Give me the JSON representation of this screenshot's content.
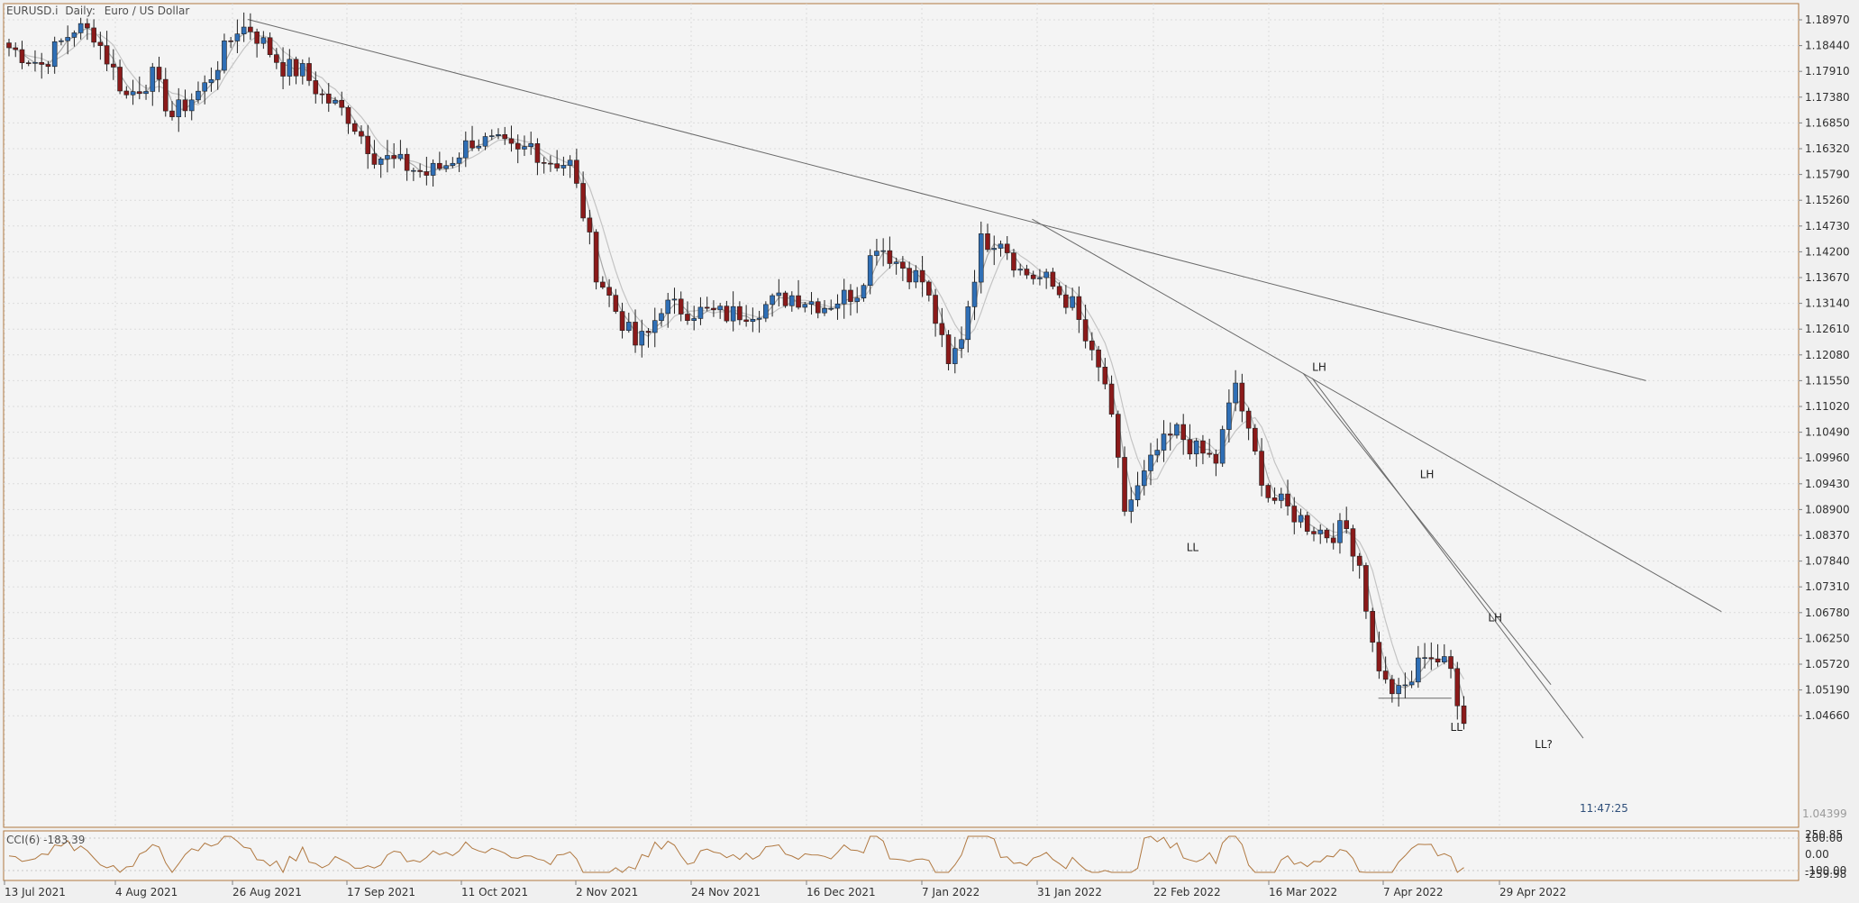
{
  "header": {
    "symbol": "EURUSD.i",
    "timeframe": "Daily:",
    "description": "Euro / US Dollar"
  },
  "indicator": {
    "label": "CCI(6) -183.39",
    "levels": [
      "250.85",
      "100.00",
      "0.00",
      "-100.00",
      "-259.98"
    ]
  },
  "timer": "11:47:25",
  "current_price_label": "1.04399",
  "colors": {
    "bull": "#2f6fb6",
    "bear": "#8b1a1a",
    "frame": "#b07840",
    "ma": "#a8a8a8",
    "trend": "#6a6a6a",
    "cci": "#b07840"
  },
  "chart_data": {
    "type": "candlestick",
    "title": "EURUSD.i, Daily:  Euro / US Dollar",
    "y_ticks": [
      "1.18970",
      "1.18440",
      "1.17910",
      "1.17380",
      "1.16850",
      "1.16320",
      "1.15790",
      "1.15260",
      "1.14730",
      "1.14200",
      "1.13670",
      "1.13140",
      "1.12610",
      "1.12080",
      "1.11550",
      "1.11020",
      "1.10490",
      "1.09960",
      "1.09430",
      "1.08900",
      "1.08370",
      "1.07840",
      "1.07310",
      "1.06780",
      "1.06250",
      "1.05720",
      "1.05190",
      "1.04660"
    ],
    "x_ticks": [
      "13 Jul 2021",
      "4 Aug 2021",
      "26 Aug 2021",
      "17 Sep 2021",
      "11 Oct 2021",
      "2 Nov 2021",
      "24 Nov 2021",
      "16 Dec 2021",
      "7 Jan 2022",
      "31 Jan 2022",
      "22 Feb 2022",
      "16 Mar 2022",
      "7 Apr 2022",
      "29 Apr 2022"
    ],
    "ylim": [
      1.0446,
      1.1907
    ],
    "anchors": [
      {
        "i": 0,
        "p": 1.184
      },
      {
        "i": 5,
        "p": 1.1805
      },
      {
        "i": 10,
        "p": 1.188
      },
      {
        "i": 13,
        "p": 1.187
      },
      {
        "i": 18,
        "p": 1.174
      },
      {
        "i": 22,
        "p": 1.178
      },
      {
        "i": 25,
        "p": 1.17
      },
      {
        "i": 30,
        "p": 1.176
      },
      {
        "i": 35,
        "p": 1.188
      },
      {
        "i": 37,
        "p": 1.188
      },
      {
        "i": 42,
        "p": 1.18
      },
      {
        "i": 45,
        "p": 1.179
      },
      {
        "i": 48,
        "p": 1.174
      },
      {
        "i": 52,
        "p": 1.17
      },
      {
        "i": 56,
        "p": 1.162
      },
      {
        "i": 60,
        "p": 1.16
      },
      {
        "i": 64,
        "p": 1.158
      },
      {
        "i": 67,
        "p": 1.16
      },
      {
        "i": 71,
        "p": 1.165
      },
      {
        "i": 75,
        "p": 1.164
      },
      {
        "i": 78,
        "p": 1.162
      },
      {
        "i": 80,
        "p": 1.164
      },
      {
        "i": 82,
        "p": 1.161
      },
      {
        "i": 86,
        "p": 1.16
      },
      {
        "i": 88,
        "p": 1.15
      },
      {
        "i": 90,
        "p": 1.138
      },
      {
        "i": 93,
        "p": 1.13
      },
      {
        "i": 96,
        "p": 1.123
      },
      {
        "i": 98,
        "p": 1.125
      },
      {
        "i": 100,
        "p": 1.131
      },
      {
        "i": 104,
        "p": 1.13
      },
      {
        "i": 110,
        "p": 1.129
      },
      {
        "i": 114,
        "p": 1.13
      },
      {
        "i": 120,
        "p": 1.133
      },
      {
        "i": 125,
        "p": 1.131
      },
      {
        "i": 130,
        "p": 1.134
      },
      {
        "i": 133,
        "p": 1.144
      },
      {
        "i": 136,
        "p": 1.14
      },
      {
        "i": 140,
        "p": 1.136
      },
      {
        "i": 142,
        "p": 1.128
      },
      {
        "i": 144,
        "p": 1.118
      },
      {
        "i": 146,
        "p": 1.125
      },
      {
        "i": 149,
        "p": 1.144
      },
      {
        "i": 152,
        "p": 1.145
      },
      {
        "i": 155,
        "p": 1.138
      },
      {
        "i": 159,
        "p": 1.136
      },
      {
        "i": 163,
        "p": 1.131
      },
      {
        "i": 166,
        "p": 1.12
      },
      {
        "i": 168,
        "p": 1.115
      },
      {
        "i": 170,
        "p": 1.098
      },
      {
        "i": 171,
        "p": 1.089
      },
      {
        "i": 173,
        "p": 1.093
      },
      {
        "i": 176,
        "p": 1.101
      },
      {
        "i": 179,
        "p": 1.105
      },
      {
        "i": 182,
        "p": 1.101
      },
      {
        "i": 185,
        "p": 1.099
      },
      {
        "i": 188,
        "p": 1.115
      },
      {
        "i": 190,
        "p": 1.104
      },
      {
        "i": 193,
        "p": 1.092
      },
      {
        "i": 196,
        "p": 1.089
      },
      {
        "i": 199,
        "p": 1.086
      },
      {
        "i": 202,
        "p": 1.084
      },
      {
        "i": 205,
        "p": 1.085
      },
      {
        "i": 207,
        "p": 1.078
      },
      {
        "i": 209,
        "p": 1.061
      },
      {
        "i": 211,
        "p": 1.053
      },
      {
        "i": 213,
        "p": 1.051
      },
      {
        "i": 215,
        "p": 1.054
      },
      {
        "i": 217,
        "p": 1.06
      },
      {
        "i": 219,
        "p": 1.058
      },
      {
        "i": 221,
        "p": 1.056
      },
      {
        "i": 223,
        "p": 1.045
      }
    ],
    "trendlines": [
      {
        "x1": 0.136,
        "p1": 1.1898,
        "x2": 0.915,
        "p2": 1.1155
      },
      {
        "x1": 0.573,
        "p1": 1.1487,
        "x2": 0.957,
        "p2": 1.068
      },
      {
        "x1": 0.724,
        "p1": 1.117,
        "x2": 0.862,
        "p2": 1.053
      },
      {
        "x1": 0.729,
        "p1": 1.116,
        "x2": 0.88,
        "p2": 1.042
      }
    ],
    "annotations": [
      {
        "text": "LH",
        "x": 0.729,
        "p": 1.1175
      },
      {
        "text": "LH",
        "x": 0.789,
        "p": 1.0955
      },
      {
        "text": "LH",
        "x": 0.827,
        "p": 1.066
      },
      {
        "text": "LL",
        "x": 0.659,
        "p": 1.0805
      },
      {
        "text": "LL",
        "x": 0.806,
        "p": 1.0435
      },
      {
        "text": "LL?",
        "x": 0.853,
        "p": 1.04
      }
    ]
  }
}
